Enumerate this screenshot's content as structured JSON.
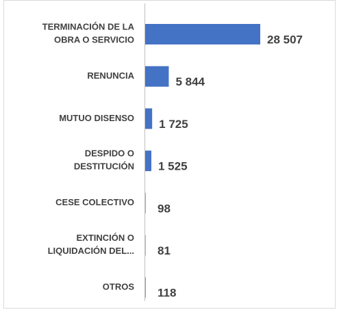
{
  "chart_data": {
    "type": "bar",
    "orientation": "horizontal",
    "categories": [
      "TERMINACIÓN DE LA\nOBRA O SERVICIO",
      "RENUNCIA",
      "MUTUO DISENSO",
      "DESPIDO O\nDESTITUCIÓN",
      "CESE COLECTIVO",
      "EXTINCIÓN O\nLIQUIDACIÓN DEL...",
      "OTROS"
    ],
    "values": [
      28507,
      5844,
      1725,
      1525,
      98,
      81,
      118
    ],
    "value_labels": [
      "28 507",
      "5 844",
      "1 725",
      "1 525",
      "98",
      "81",
      "118"
    ],
    "color": "#4472c4"
  }
}
